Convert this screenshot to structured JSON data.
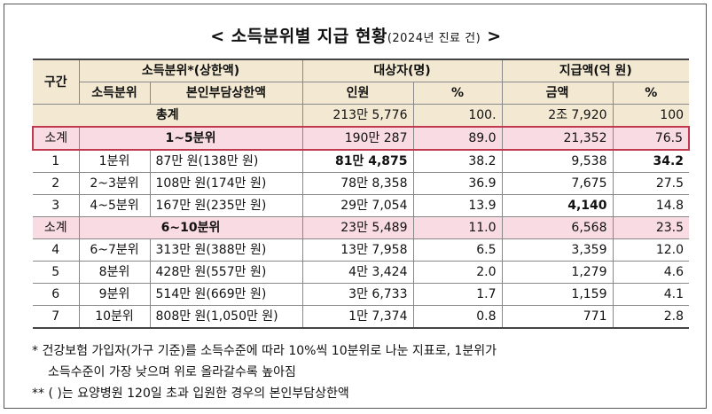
{
  "title": "< 소득분위별 지급 현황",
  "title_sub": "(2024년 진료 건)",
  "title_end": " >",
  "headers": {
    "group": "구간",
    "income_group": "소득분위*(상한액)",
    "target_group": "대상자(명)",
    "payment_group": "지급액(억 원)",
    "income_level": "소득분위",
    "copay_cap": "본인부담상한액",
    "persons": "인원",
    "pct": "%",
    "amount": "금액"
  },
  "rows": [
    {
      "type": "total",
      "label": "총계",
      "persons": "213만 5,776",
      "pct": "100.",
      "amount": "2조 7,920",
      "amount_pct": "100"
    },
    {
      "type": "subtotal",
      "group": "소계",
      "label": "1~5분위",
      "persons": "190만 287",
      "pct": "89.0",
      "amount": "21,352",
      "amount_pct": "76.5"
    },
    {
      "type": "row",
      "group": "1",
      "level": "1분위",
      "cap": "87만 원(138만 원)",
      "persons": "81만 4,875",
      "pct": "38.2",
      "amount": "9,538",
      "amount_pct": "34.2"
    },
    {
      "type": "row",
      "group": "2",
      "level": "2~3분위",
      "cap": "108만 원(174만 원)",
      "persons": "78만 8,358",
      "pct": "36.9",
      "amount": "7,675",
      "amount_pct": "27.5"
    },
    {
      "type": "row",
      "group": "3",
      "level": "4~5분위",
      "cap": "167만 원(235만 원)",
      "persons": "29만 7,054",
      "pct": "13.9",
      "amount": "4,140",
      "amount_pct": "14.8"
    },
    {
      "type": "subtotal",
      "group": "소계",
      "label": "6~10분위",
      "persons": "23만 5,489",
      "pct": "11.0",
      "amount": "6,568",
      "amount_pct": "23.5"
    },
    {
      "type": "row",
      "group": "4",
      "level": "6~7분위",
      "cap": "313만 원(388만 원)",
      "persons": "13만 7,958",
      "pct": "6.5",
      "amount": "3,359",
      "amount_pct": "12.0"
    },
    {
      "type": "row",
      "group": "5",
      "level": "8분위",
      "cap": "428만 원(557만 원)",
      "persons": "4만 3,424",
      "pct": "2.0",
      "amount": "1,279",
      "amount_pct": "4.6"
    },
    {
      "type": "row",
      "group": "6",
      "level": "9분위",
      "cap": "514만 원(669만 원)",
      "persons": "3만 6,733",
      "pct": "1.7",
      "amount": "1,159",
      "amount_pct": "4.1"
    },
    {
      "type": "row",
      "group": "7",
      "level": "10분위",
      "cap": "808만 원(1,050만 원)",
      "persons": "1만 7,374",
      "pct": "0.8",
      "amount": "771",
      "amount_pct": "2.8"
    }
  ],
  "notes": {
    "note1_line1": "* 건강보험 가입자(가구 기준)를 소득수준에 따라 10%씩 10분위로 나눈 지표로, 1분위가",
    "note1_line2": "소득수준이 가장 낮으며 위로 올라갈수록 높아짐",
    "note2": "** ( )는 요양병원 120일 초과 입원한 경우의 본인부담상한액"
  }
}
